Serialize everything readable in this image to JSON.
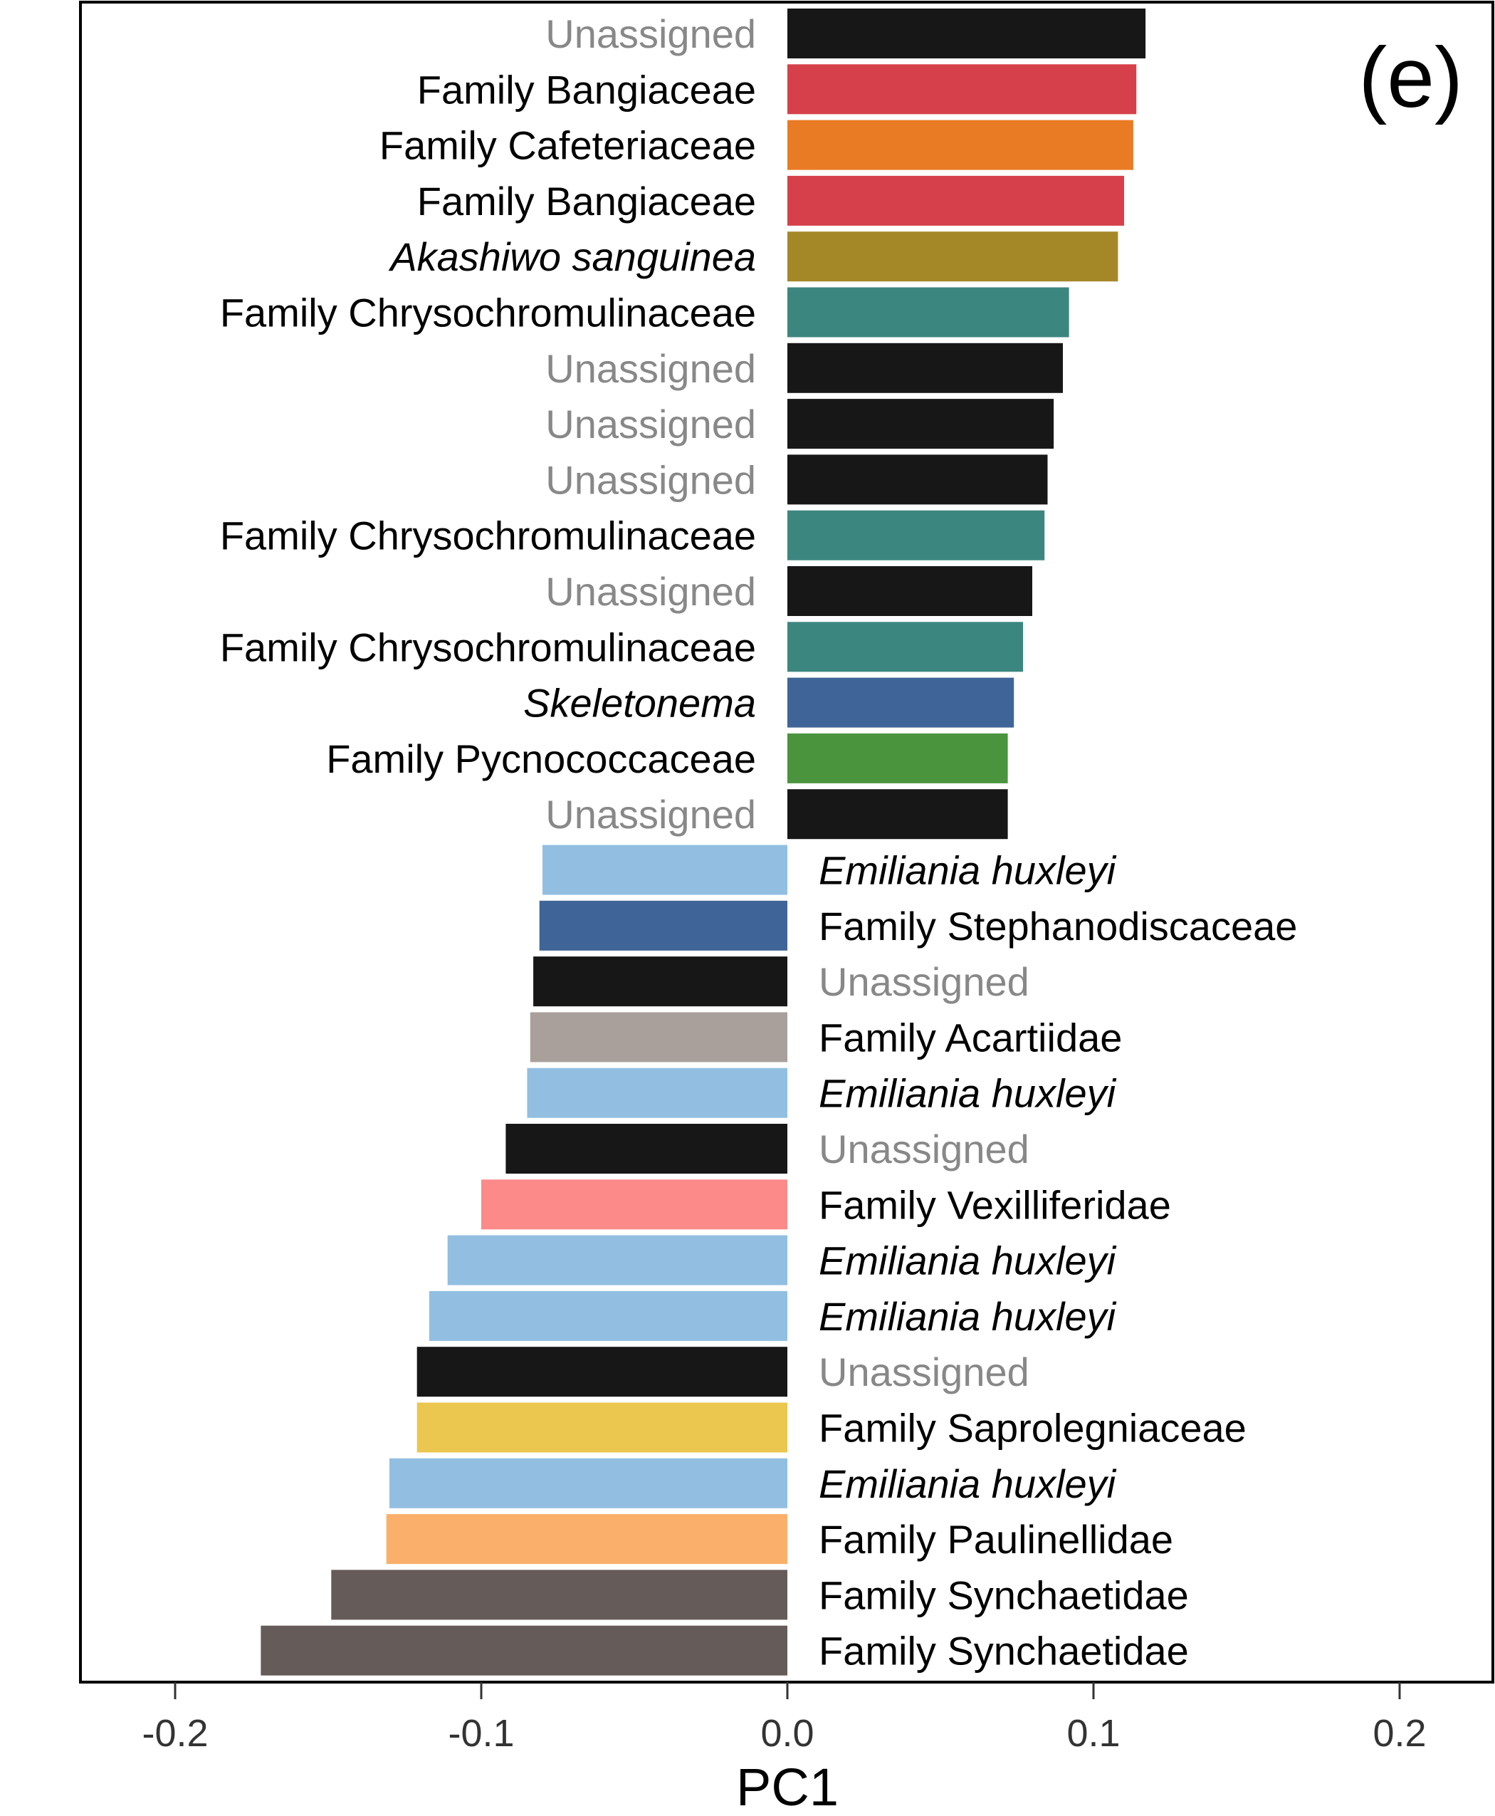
{
  "chart_data": {
    "type": "bar",
    "orientation": "horizontal",
    "panel_label": "(e)",
    "xlabel": "PC1",
    "ylabel": "",
    "xlim": [
      -0.225,
      0.23
    ],
    "xticks": [
      -0.2,
      -0.1,
      0.0,
      0.1,
      0.2
    ],
    "xtick_labels": [
      "-0.2",
      "-0.1",
      "0.0",
      "0.1",
      "0.2"
    ],
    "grid": false,
    "legend": "none",
    "bars": [
      {
        "label": "Unassigned",
        "value": 0.117,
        "color": "#171717",
        "label_color": "#888888",
        "italic": false
      },
      {
        "label": "Family Bangiaceae",
        "value": 0.114,
        "color": "#D6404A",
        "label_color": "#000000",
        "italic": false
      },
      {
        "label": "Family Cafeteriaceae",
        "value": 0.113,
        "color": "#EA7B25",
        "label_color": "#000000",
        "italic": false
      },
      {
        "label": "Family Bangiaceae",
        "value": 0.11,
        "color": "#D6404A",
        "label_color": "#000000",
        "italic": false
      },
      {
        "label": "Akashiwo sanguinea",
        "value": 0.108,
        "color": "#A48827",
        "label_color": "#000000",
        "italic": true
      },
      {
        "label": "Family Chrysochromulinaceae",
        "value": 0.092,
        "color": "#3C8680",
        "label_color": "#000000",
        "italic": false
      },
      {
        "label": "Unassigned",
        "value": 0.09,
        "color": "#171717",
        "label_color": "#888888",
        "italic": false
      },
      {
        "label": "Unassigned",
        "value": 0.087,
        "color": "#171717",
        "label_color": "#888888",
        "italic": false
      },
      {
        "label": "Unassigned",
        "value": 0.085,
        "color": "#171717",
        "label_color": "#888888",
        "italic": false
      },
      {
        "label": "Family Chrysochromulinaceae",
        "value": 0.084,
        "color": "#3C8680",
        "label_color": "#000000",
        "italic": false
      },
      {
        "label": "Unassigned",
        "value": 0.08,
        "color": "#171717",
        "label_color": "#888888",
        "italic": false
      },
      {
        "label": "Family Chrysochromulinaceae",
        "value": 0.077,
        "color": "#3C8680",
        "label_color": "#000000",
        "italic": false
      },
      {
        "label": "Skeletonema",
        "value": 0.074,
        "color": "#3F6497",
        "label_color": "#000000",
        "italic": true
      },
      {
        "label": "Family Pycnococcaceae",
        "value": 0.072,
        "color": "#4A943D",
        "label_color": "#000000",
        "italic": false
      },
      {
        "label": "Unassigned",
        "value": 0.072,
        "color": "#171717",
        "label_color": "#888888",
        "italic": false
      },
      {
        "label": "Emiliania huxleyi",
        "value": -0.08,
        "color": "#92BFE1",
        "label_color": "#000000",
        "italic": true
      },
      {
        "label": "Family Stephanodiscaceae",
        "value": -0.081,
        "color": "#3F6497",
        "label_color": "#000000",
        "italic": false
      },
      {
        "label": "Unassigned",
        "value": -0.083,
        "color": "#171717",
        "label_color": "#888888",
        "italic": false
      },
      {
        "label": "Family Acartiidae",
        "value": -0.084,
        "color": "#A9A09B",
        "label_color": "#000000",
        "italic": false
      },
      {
        "label": "Emiliania huxleyi",
        "value": -0.085,
        "color": "#92BFE1",
        "label_color": "#000000",
        "italic": true
      },
      {
        "label": "Unassigned",
        "value": -0.092,
        "color": "#171717",
        "label_color": "#888888",
        "italic": false
      },
      {
        "label": "Family Vexilliferidae",
        "value": -0.1,
        "color": "#FC8A89",
        "label_color": "#000000",
        "italic": false
      },
      {
        "label": "Emiliania huxleyi",
        "value": -0.111,
        "color": "#92BFE1",
        "label_color": "#000000",
        "italic": true
      },
      {
        "label": "Emiliania huxleyi",
        "value": -0.117,
        "color": "#92BFE1",
        "label_color": "#000000",
        "italic": true
      },
      {
        "label": "Unassigned",
        "value": -0.121,
        "color": "#171717",
        "label_color": "#888888",
        "italic": false
      },
      {
        "label": "Family Saprolegniaceae",
        "value": -0.121,
        "color": "#EBC74F",
        "label_color": "#000000",
        "italic": false
      },
      {
        "label": "Emiliania huxleyi",
        "value": -0.13,
        "color": "#92BFE1",
        "label_color": "#000000",
        "italic": true
      },
      {
        "label": "Family Paulinellidae",
        "value": -0.131,
        "color": "#FAB06A",
        "label_color": "#000000",
        "italic": false
      },
      {
        "label": "Family Synchaetidae",
        "value": -0.149,
        "color": "#655B59",
        "label_color": "#000000",
        "italic": false
      },
      {
        "label": "Family Synchaetidae",
        "value": -0.172,
        "color": "#655B59",
        "label_color": "#000000",
        "italic": false
      }
    ]
  }
}
